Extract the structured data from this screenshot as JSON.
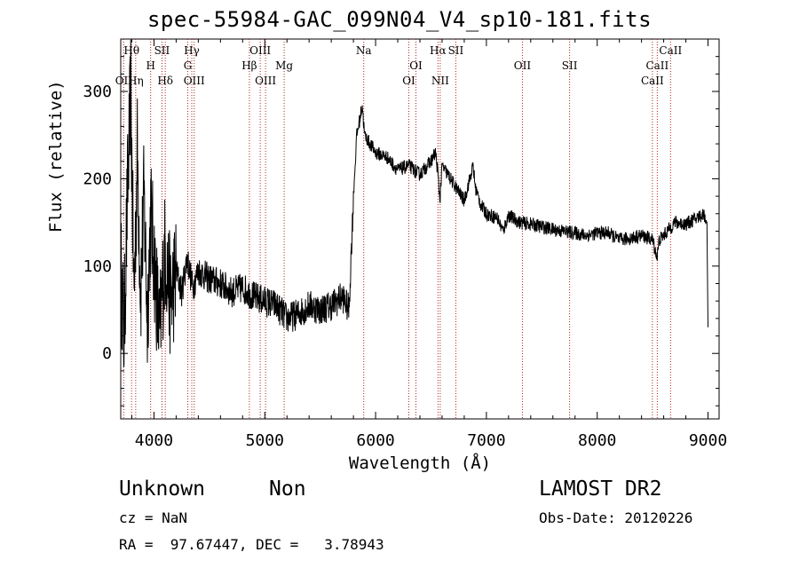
{
  "chart_data": {
    "type": "line",
    "title": "spec-55984-GAC_099N04_V4_sp10-181.fits",
    "xlabel": "Wavelength (Å)",
    "ylabel": "Flux (relative)",
    "xlim": [
      3700,
      9100
    ],
    "ylim": [
      -75,
      360
    ],
    "xticks": [
      "4000",
      "5000",
      "6000",
      "7000",
      "8000",
      "9000"
    ],
    "xtick_values": [
      4000,
      5000,
      6000,
      7000,
      8000,
      9000
    ],
    "yticks": [
      "0",
      "100",
      "200",
      "300"
    ],
    "ytick_values": [
      0,
      100,
      200,
      300
    ],
    "series": [
      {
        "x": [
          3700,
          3730,
          3760,
          3790,
          3820,
          3850,
          3880,
          3910,
          3940,
          3970,
          4000,
          4050,
          4100,
          4150,
          4200,
          4250,
          4300,
          4350,
          4400,
          4500,
          4600,
          4700,
          4800,
          4900,
          5000,
          5100,
          5200,
          5300,
          5400,
          5500,
          5600,
          5700,
          5760,
          5800,
          5830,
          5860,
          5880,
          5900,
          5950,
          6000,
          6100,
          6200,
          6300,
          6400,
          6500,
          6540,
          6560,
          6580,
          6600,
          6650,
          6700,
          6800,
          6850,
          6880,
          6900,
          6950,
          7000,
          7100,
          7150,
          7200,
          7300,
          7400,
          7500,
          7600,
          7700,
          7800,
          7900,
          8000,
          8100,
          8200,
          8300,
          8400,
          8500,
          8540,
          8560,
          8600,
          8700,
          8800,
          8900,
          8960,
          8990,
          9000
        ],
        "y": [
          100,
          20,
          180,
          300,
          60,
          230,
          70,
          180,
          40,
          160,
          110,
          20,
          120,
          60,
          95,
          70,
          110,
          75,
          95,
          85,
          80,
          70,
          75,
          65,
          60,
          55,
          40,
          45,
          55,
          50,
          55,
          65,
          50,
          180,
          250,
          270,
          285,
          250,
          240,
          230,
          225,
          210,
          215,
          205,
          220,
          230,
          210,
          175,
          215,
          205,
          195,
          175,
          200,
          215,
          190,
          170,
          160,
          155,
          140,
          158,
          150,
          148,
          145,
          142,
          140,
          138,
          135,
          138,
          138,
          130,
          132,
          135,
          130,
          110,
          130,
          135,
          150,
          148,
          155,
          160,
          150,
          30
        ]
      }
    ],
    "line_markers": [
      {
        "label": "Hθ",
        "x": 3798,
        "row": 1
      },
      {
        "label": "OII",
        "x": 3727,
        "row": 3
      },
      {
        "label": "Hη",
        "x": 3835,
        "row": 3
      },
      {
        "label": "SII",
        "x": 4072,
        "row": 1
      },
      {
        "label": "H",
        "x": 3970,
        "row": 2
      },
      {
        "label": "Hδ",
        "x": 4102,
        "row": 3
      },
      {
        "label": "Hγ",
        "x": 4341,
        "row": 1
      },
      {
        "label": "G",
        "x": 4305,
        "row": 2
      },
      {
        "label": "OIII",
        "x": 4363,
        "row": 3
      },
      {
        "label": "OIII",
        "x": 4959,
        "row": 1
      },
      {
        "label": "Hβ",
        "x": 4861,
        "row": 2
      },
      {
        "label": "OIII",
        "x": 5007,
        "row": 3
      },
      {
        "label": "Mg",
        "x": 5175,
        "row": 2
      },
      {
        "label": "Na",
        "x": 5893,
        "row": 1
      },
      {
        "label": "OI",
        "x": 6364,
        "row": 2
      },
      {
        "label": "OI",
        "x": 6300,
        "row": 3
      },
      {
        "label": "Hα",
        "x": 6563,
        "row": 1
      },
      {
        "label": "SII",
        "x": 6724,
        "row": 1
      },
      {
        "label": "NII",
        "x": 6583,
        "row": 3
      },
      {
        "label": "OII",
        "x": 7325,
        "row": 2
      },
      {
        "label": "SII",
        "x": 7751,
        "row": 2
      },
      {
        "label": "CaII",
        "x": 8662,
        "row": 1
      },
      {
        "label": "CaII",
        "x": 8542,
        "row": 2
      },
      {
        "label": "CaII",
        "x": 8498,
        "row": 3
      }
    ]
  },
  "info": {
    "class": "Unknown",
    "subclass": "Non",
    "survey": "LAMOST DR2",
    "cz": "cz = NaN",
    "obs_date": "Obs-Date: 20120226",
    "coords": "RA =  97.67447, DEC =   3.78943"
  }
}
